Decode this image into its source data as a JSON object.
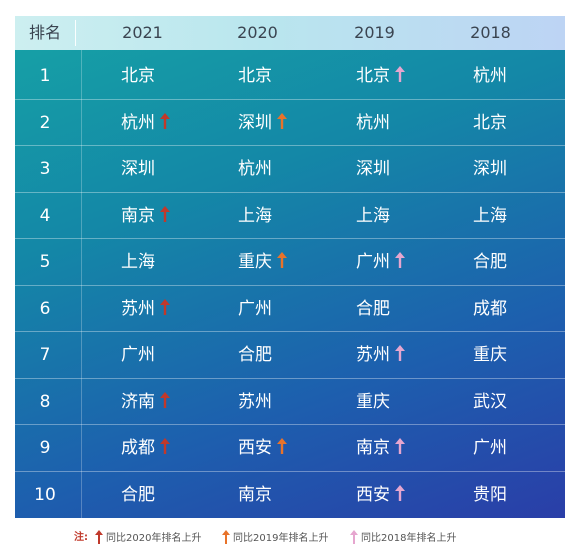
{
  "table": {
    "headers": [
      "排名",
      "2021",
      "2020",
      "2019",
      "2018"
    ],
    "rows": [
      {
        "rank": "1",
        "c2021": "北京",
        "a2021": "",
        "c2020": "北京",
        "a2020": "",
        "c2019": "北京",
        "a2019": "pink",
        "c2018": "杭州"
      },
      {
        "rank": "2",
        "c2021": "杭州",
        "a2021": "red",
        "c2020": "深圳",
        "a2020": "orange",
        "c2019": "杭州",
        "a2019": "",
        "c2018": "北京"
      },
      {
        "rank": "3",
        "c2021": "深圳",
        "a2021": "",
        "c2020": "杭州",
        "a2020": "",
        "c2019": "深圳",
        "a2019": "",
        "c2018": "深圳"
      },
      {
        "rank": "4",
        "c2021": "南京",
        "a2021": "red",
        "c2020": "上海",
        "a2020": "",
        "c2019": "上海",
        "a2019": "",
        "c2018": "上海"
      },
      {
        "rank": "5",
        "c2021": "上海",
        "a2021": "",
        "c2020": "重庆",
        "a2020": "orange",
        "c2019": "广州",
        "a2019": "pink",
        "c2018": "合肥"
      },
      {
        "rank": "6",
        "c2021": "苏州",
        "a2021": "red",
        "c2020": "广州",
        "a2020": "",
        "c2019": "合肥",
        "a2019": "",
        "c2018": "成都"
      },
      {
        "rank": "7",
        "c2021": "广州",
        "a2021": "",
        "c2020": "合肥",
        "a2020": "",
        "c2019": "苏州",
        "a2019": "pink",
        "c2018": "重庆"
      },
      {
        "rank": "8",
        "c2021": "济南",
        "a2021": "red",
        "c2020": "苏州",
        "a2020": "",
        "c2019": "重庆",
        "a2019": "",
        "c2018": "武汉"
      },
      {
        "rank": "9",
        "c2021": "成都",
        "a2021": "red",
        "c2020": "西安",
        "a2020": "orange",
        "c2019": "南京",
        "a2019": "pink",
        "c2018": "广州"
      },
      {
        "rank": "10",
        "c2021": "合肥",
        "a2021": "",
        "c2020": "南京",
        "a2020": "",
        "c2019": "西安",
        "a2019": "pink",
        "c2018": "贵阳"
      }
    ]
  },
  "legend": {
    "note_label": "注:",
    "items": [
      {
        "icon": "red-up-arrow-icon",
        "color": "#c0392b",
        "text": "同比2020年排名上升"
      },
      {
        "icon": "orange-up-arrow-icon",
        "color": "#e8732a",
        "text": "同比2019年排名上升"
      },
      {
        "icon": "pink-up-arrow-icon",
        "color": "#e6a6cf",
        "text": "同比2018年排名上升"
      }
    ]
  },
  "colors": {
    "red": "#c0392b",
    "orange": "#e8732a",
    "pink": "#e6a6cf",
    "header_bg": "#c4ebf0",
    "panel_top": "#16a3a6",
    "panel_bottom": "#2a3ea8"
  }
}
